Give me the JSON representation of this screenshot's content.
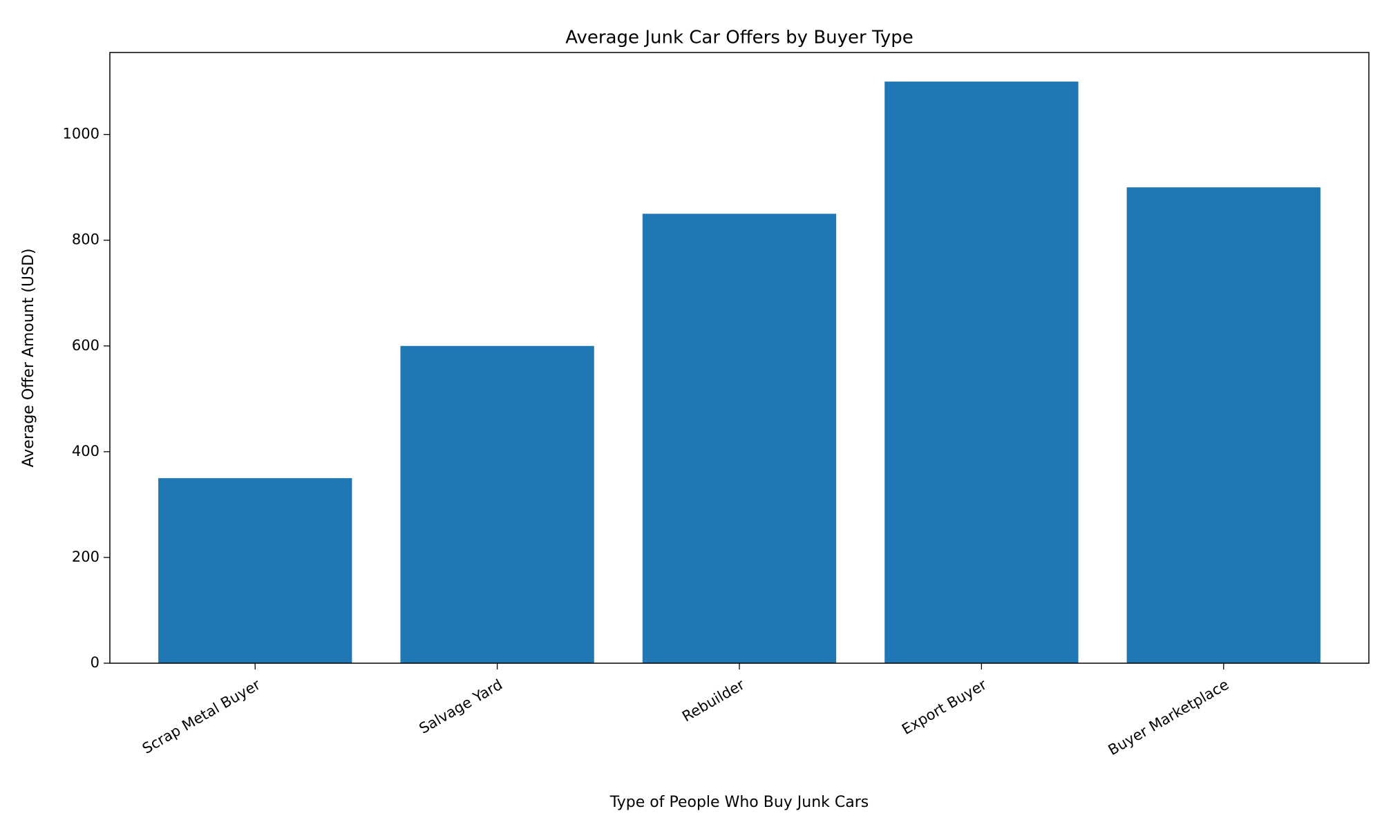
{
  "chart_data": {
    "type": "bar",
    "title": "Average Junk Car Offers by Buyer Type",
    "x_label": "Type of People Who Buy Junk Cars",
    "y_label": "Average Offer Amount (USD)",
    "categories": [
      "Scrap Metal Buyer",
      "Salvage Yard",
      "Rebuilder",
      "Export Buyer",
      "Buyer Marketplace"
    ],
    "values": [
      350,
      600,
      850,
      1100,
      900
    ],
    "color": "#1f77b4",
    "ylim": [
      0,
      1155
    ],
    "yticks": [
      0,
      200,
      400,
      600,
      800,
      1000
    ],
    "grid": false
  }
}
